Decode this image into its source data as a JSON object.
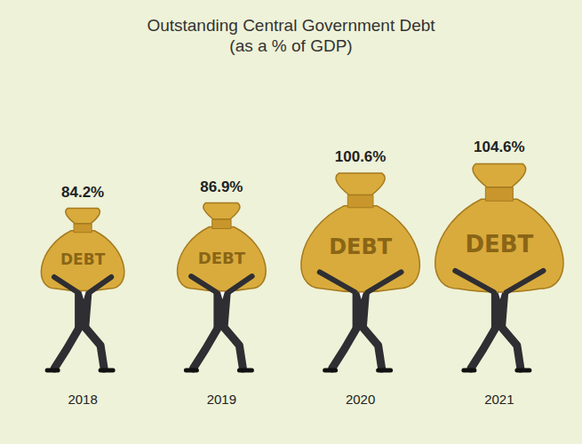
{
  "chart_data": {
    "type": "bar",
    "title": "Outstanding Central Government Debt",
    "subtitle": "(as a % of GDP)",
    "categories": [
      "2018",
      "2019",
      "2020",
      "2021"
    ],
    "values": [
      84.2,
      86.9,
      100.6,
      104.6
    ],
    "value_labels": [
      "84.2%",
      "86.9%",
      "100.6%",
      "104.6%"
    ],
    "data_labels": true,
    "color": "#d9ab3c",
    "bag_text": "DEBT",
    "tick_labels": "x",
    "grid": false
  }
}
